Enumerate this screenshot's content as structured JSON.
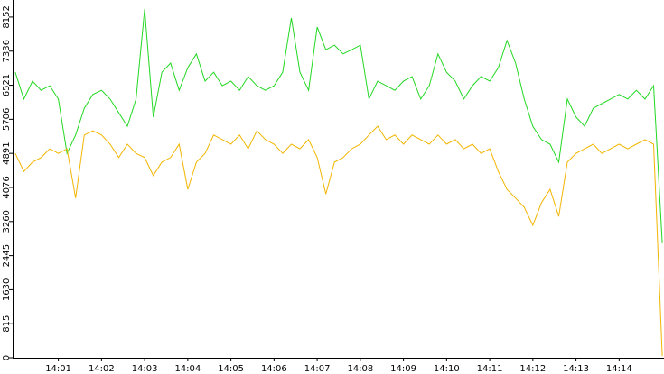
{
  "chart_data": {
    "type": "line",
    "x": [
      840.0,
      840.2,
      840.4,
      840.6,
      840.8,
      841.0,
      841.2,
      841.4,
      841.6,
      841.8,
      842.0,
      842.2,
      842.4,
      842.6,
      842.8,
      843.0,
      843.2,
      843.4,
      843.6,
      843.8,
      844.0,
      844.2,
      844.4,
      844.6,
      844.8,
      845.0,
      845.2,
      845.4,
      845.6,
      845.8,
      846.0,
      846.2,
      846.4,
      846.6,
      846.8,
      847.0,
      847.2,
      847.4,
      847.6,
      847.8,
      848.0,
      848.2,
      848.4,
      848.6,
      848.8,
      849.0,
      849.2,
      849.4,
      849.6,
      849.8,
      850.0,
      850.2,
      850.4,
      850.6,
      850.8,
      851.0,
      851.2,
      851.4,
      851.6,
      851.8,
      852.0,
      852.2,
      852.4,
      852.6,
      852.8,
      853.0,
      853.2,
      853.4,
      853.6,
      853.8,
      854.0,
      854.2,
      854.4,
      854.6,
      854.8,
      855.0
    ],
    "series": [
      {
        "color": "#22d822",
        "values": [
          6830,
          6190,
          6620,
          6400,
          6510,
          6190,
          4890,
          5330,
          5970,
          6300,
          6400,
          6190,
          5860,
          5540,
          6190,
          8340,
          5760,
          6830,
          7050,
          6400,
          6940,
          7270,
          6620,
          6830,
          6510,
          6620,
          6400,
          6730,
          6510,
          6400,
          6510,
          6830,
          8130,
          6830,
          6400,
          7910,
          7370,
          7480,
          7270,
          7370,
          7480,
          6190,
          6620,
          6510,
          6400,
          6620,
          6730,
          6190,
          6510,
          7270,
          6830,
          6620,
          6190,
          6510,
          6730,
          6620,
          6940,
          7590,
          7050,
          6190,
          5540,
          5220,
          5110,
          4680,
          6190,
          5760,
          5540,
          5970,
          6080,
          6190,
          6300,
          6190,
          6400,
          6190,
          6510,
          2740
        ]
      },
      {
        "color": "#f2b500",
        "values": [
          4890,
          4460,
          4680,
          4790,
          5000,
          4890,
          5000,
          3820,
          5330,
          5430,
          5330,
          5110,
          4790,
          5110,
          4890,
          4790,
          4360,
          4680,
          4790,
          5110,
          4030,
          4680,
          4890,
          5330,
          5220,
          5110,
          5330,
          5000,
          5430,
          5220,
          5110,
          4890,
          5110,
          5000,
          5220,
          4790,
          3920,
          4680,
          4790,
          5000,
          5110,
          5330,
          5540,
          5220,
          5330,
          5110,
          5330,
          5220,
          5110,
          5330,
          5110,
          5220,
          5000,
          5110,
          4890,
          5000,
          4460,
          4030,
          3820,
          3600,
          3170,
          3710,
          4030,
          3380,
          4680,
          4890,
          5000,
          5110,
          4890,
          5000,
          5110,
          5000,
          5110,
          5220,
          5110,
          40
        ]
      }
    ],
    "xlim": [
      839.94,
      855.04
    ],
    "xticks": [
      {
        "value": 841,
        "label": "14:01"
      },
      {
        "value": 842,
        "label": "14:02"
      },
      {
        "value": 843,
        "label": "14:03"
      },
      {
        "value": 844,
        "label": "14:04"
      },
      {
        "value": 845,
        "label": "14:05"
      },
      {
        "value": 846,
        "label": "14:06"
      },
      {
        "value": 847,
        "label": "14:07"
      },
      {
        "value": 848,
        "label": "14:08"
      },
      {
        "value": 849,
        "label": "14:09"
      },
      {
        "value": 850,
        "label": "14:10"
      },
      {
        "value": 851,
        "label": "14:11"
      },
      {
        "value": 852,
        "label": "14:12"
      },
      {
        "value": 853,
        "label": "14:13"
      },
      {
        "value": 854,
        "label": "14:14"
      }
    ],
    "ylim": [
      0,
      8560
    ],
    "yticks": [
      0,
      815,
      1630,
      2445,
      3260,
      4076,
      4891,
      5706,
      6521,
      7336,
      8152
    ]
  }
}
